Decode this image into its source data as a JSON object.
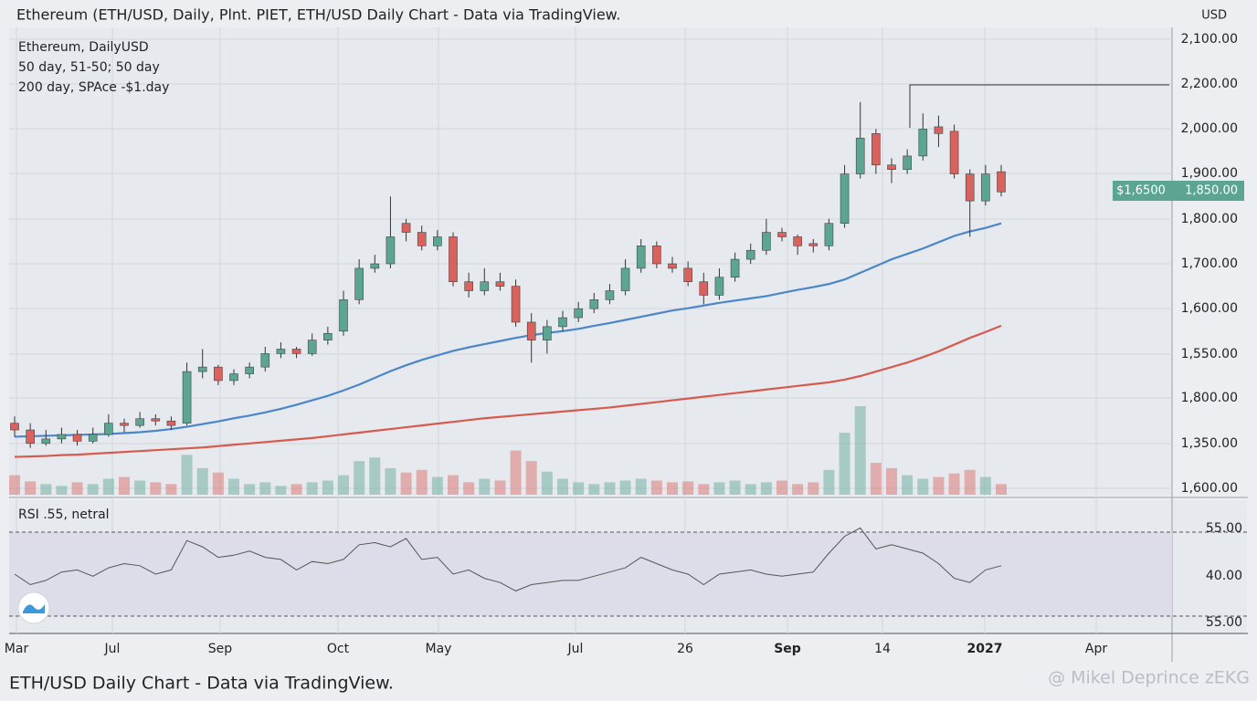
{
  "header": {
    "title": "Ethereum (ETH/USD, Daily, Plnt. PIET, ETH/USD  Daily Chart - Data via TradingView.",
    "currency": "USD"
  },
  "chart_data": {
    "type": "candlestick",
    "legend_title": "Ethereum, DailyUSD",
    "up_color": "#5ba592",
    "down_color": "#d9615e",
    "ylim": [
      1200,
      2200
    ],
    "open": [
      1345,
      1330,
      1300,
      1310,
      1320,
      1305,
      1320,
      1345,
      1340,
      1355,
      1350,
      1345,
      1460,
      1470,
      1440,
      1455,
      1470,
      1500,
      1510,
      1500,
      1530,
      1550,
      1620,
      1690,
      1700,
      1790,
      1770,
      1740,
      1760,
      1660,
      1640,
      1660,
      1650,
      1570,
      1530,
      1560,
      1580,
      1600,
      1620,
      1640,
      1690,
      1740,
      1700,
      1690,
      1660,
      1630,
      1670,
      1710,
      1730,
      1770,
      1760,
      1745,
      1740,
      1790,
      1900,
      1990,
      1920,
      1910,
      1940,
      2005,
      1995,
      1900,
      1840,
      1905
    ],
    "high": [
      1360,
      1345,
      1330,
      1335,
      1330,
      1335,
      1365,
      1355,
      1370,
      1365,
      1360,
      1480,
      1510,
      1475,
      1465,
      1480,
      1515,
      1525,
      1515,
      1545,
      1560,
      1640,
      1710,
      1720,
      1850,
      1800,
      1785,
      1775,
      1770,
      1680,
      1690,
      1680,
      1665,
      1590,
      1575,
      1595,
      1615,
      1635,
      1655,
      1710,
      1755,
      1750,
      1715,
      1705,
      1680,
      1690,
      1725,
      1745,
      1800,
      1780,
      1765,
      1755,
      1800,
      1920,
      2060,
      2000,
      1935,
      1955,
      2035,
      2030,
      2010,
      1910,
      1920,
      1920
    ],
    "low": [
      1315,
      1290,
      1295,
      1300,
      1295,
      1300,
      1315,
      1325,
      1335,
      1340,
      1330,
      1340,
      1445,
      1430,
      1430,
      1445,
      1460,
      1490,
      1490,
      1495,
      1520,
      1540,
      1610,
      1680,
      1690,
      1750,
      1730,
      1730,
      1650,
      1625,
      1630,
      1640,
      1560,
      1480,
      1500,
      1550,
      1570,
      1590,
      1610,
      1630,
      1680,
      1690,
      1680,
      1650,
      1610,
      1620,
      1660,
      1700,
      1720,
      1750,
      1720,
      1725,
      1730,
      1780,
      1890,
      1900,
      1880,
      1900,
      1930,
      1960,
      1890,
      1760,
      1830,
      1850
    ],
    "close": [
      1330,
      1300,
      1310,
      1320,
      1305,
      1320,
      1345,
      1340,
      1355,
      1350,
      1340,
      1460,
      1470,
      1440,
      1455,
      1470,
      1500,
      1510,
      1500,
      1530,
      1545,
      1620,
      1690,
      1700,
      1760,
      1770,
      1740,
      1760,
      1660,
      1640,
      1660,
      1650,
      1570,
      1530,
      1560,
      1580,
      1600,
      1620,
      1640,
      1690,
      1740,
      1700,
      1690,
      1660,
      1630,
      1670,
      1710,
      1730,
      1770,
      1760,
      1740,
      1740,
      1790,
      1900,
      1980,
      1920,
      1910,
      1940,
      2000,
      1990,
      1900,
      1840,
      1900,
      1860
    ],
    "overlays": [
      {
        "name": "50 day, 51-50; 50 day",
        "color": "#4a86c8",
        "values": [
          1315,
          1316,
          1317,
          1318,
          1319,
          1320,
          1321,
          1323,
          1325,
          1328,
          1332,
          1337,
          1343,
          1349,
          1356,
          1362,
          1369,
          1377,
          1386,
          1396,
          1406,
          1418,
          1431,
          1446,
          1461,
          1474,
          1486,
          1496,
          1506,
          1514,
          1521,
          1528,
          1535,
          1541,
          1546,
          1550,
          1555,
          1562,
          1568,
          1575,
          1582,
          1589,
          1596,
          1601,
          1607,
          1613,
          1618,
          1623,
          1628,
          1635,
          1642,
          1648,
          1655,
          1665,
          1680,
          1695,
          1710,
          1722,
          1734,
          1748,
          1762,
          1772,
          1780,
          1790
        ]
      },
      {
        "name": "200 day, SPAce -$1.day",
        "color": "#d65a4e",
        "values": [
          1270,
          1271,
          1272,
          1274,
          1275,
          1277,
          1279,
          1281,
          1283,
          1285,
          1287,
          1289,
          1291,
          1294,
          1297,
          1300,
          1303,
          1306,
          1309,
          1312,
          1316,
          1320,
          1324,
          1328,
          1332,
          1336,
          1340,
          1344,
          1348,
          1352,
          1356,
          1359,
          1362,
          1365,
          1368,
          1371,
          1374,
          1377,
          1380,
          1384,
          1388,
          1392,
          1396,
          1400,
          1404,
          1408,
          1412,
          1416,
          1420,
          1424,
          1428,
          1432,
          1436,
          1442,
          1450,
          1460,
          1470,
          1480,
          1492,
          1505,
          1520,
          1535,
          1548,
          1562
        ]
      }
    ],
    "price_axis_labels": [
      "2,100.00",
      "2,200.00",
      "2,000.00",
      "1,900.00",
      "1,800.00",
      "1,700.00",
      "1,600.00",
      "1,550.00",
      "1,800.00",
      "1,350.00",
      "1,600.00"
    ],
    "last_price_badge": [
      "$1,6500",
      "1,850.00"
    ],
    "volume": {
      "ylim": [
        0,
        100
      ],
      "values": [
        22,
        15,
        12,
        10,
        14,
        12,
        18,
        20,
        16,
        14,
        12,
        45,
        30,
        25,
        18,
        12,
        14,
        10,
        12,
        14,
        16,
        22,
        38,
        42,
        30,
        25,
        28,
        20,
        22,
        14,
        18,
        16,
        50,
        38,
        26,
        18,
        14,
        12,
        14,
        16,
        18,
        16,
        14,
        15,
        12,
        14,
        16,
        12,
        14,
        16,
        12,
        14,
        28,
        70,
        100,
        36,
        30,
        22,
        18,
        20,
        24,
        28,
        20,
        12
      ]
    },
    "rsi": {
      "label": "RSI .55, netral",
      "color": "#555555",
      "ylim": [
        30,
        70
      ],
      "levels": [
        30,
        70
      ],
      "axis_labels": [
        "55.00",
        "40.00",
        "55.00"
      ],
      "values": [
        50,
        45,
        47,
        51,
        52,
        49,
        53,
        55,
        54,
        50,
        52,
        66,
        63,
        58,
        59,
        61,
        58,
        57,
        52,
        56,
        55,
        57,
        64,
        65,
        63,
        67,
        57,
        58,
        50,
        52,
        48,
        46,
        42,
        45,
        46,
        47,
        47,
        49,
        51,
        53,
        58,
        55,
        52,
        50,
        45,
        50,
        51,
        52,
        50,
        49,
        50,
        51,
        60,
        68,
        72,
        62,
        64,
        62,
        60,
        55,
        48,
        46,
        52,
        54
      ]
    },
    "x_axis_labels": [
      "Mar",
      "Jul",
      "Sep",
      "Oct",
      "May",
      "Jul",
      "26",
      "Sep",
      "14",
      "2027",
      "Apr"
    ]
  },
  "footer": {
    "caption": "ETH/USD Daily Chart - Data via TradingView.",
    "watermark": "@ Mikel Deprince zEKG"
  }
}
